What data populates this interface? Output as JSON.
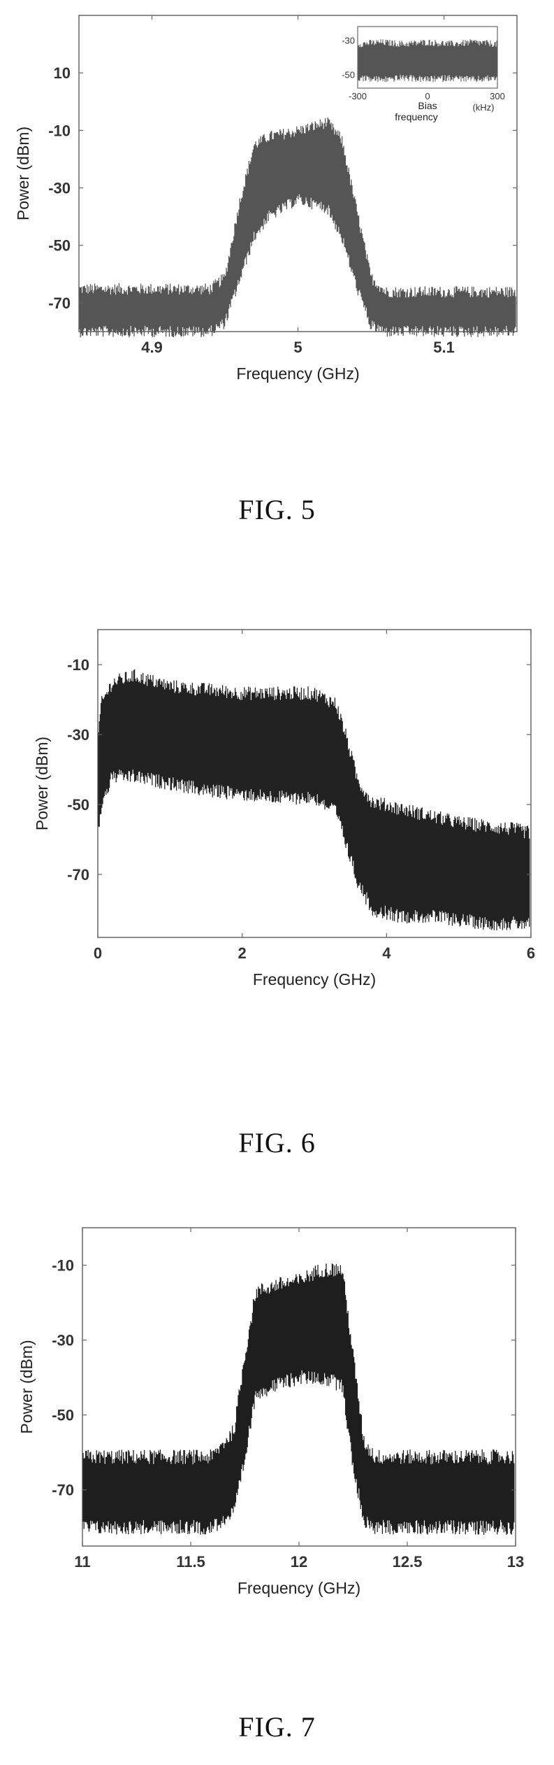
{
  "chart_data": [
    {
      "type": "line",
      "title": "",
      "xlabel": "Frequency (GHz)",
      "ylabel": "Power (dBm)",
      "xlim": [
        4.85,
        5.15
      ],
      "ylim": [
        -80,
        30
      ],
      "xticks": [
        4.9,
        5,
        5.1
      ],
      "xtick_labels": [
        "4.9",
        "5",
        "5.1"
      ],
      "yticks": [
        10,
        -10,
        -30,
        -50,
        -70
      ],
      "ytick_labels": [
        "10",
        "-10",
        "-30",
        "-50",
        "-70"
      ],
      "grid": false,
      "color": "#555555",
      "series": [
        {
          "x": [
            4.85,
            4.9,
            4.94,
            4.95,
            4.96,
            4.97,
            4.98,
            5.0,
            5.02,
            5.03,
            5.04,
            5.05,
            5.06,
            5.1,
            5.15
          ],
          "upper": [
            -66,
            -66,
            -66,
            -62,
            -36,
            -16,
            -13,
            -11,
            -8,
            -14,
            -38,
            -62,
            -67,
            -67,
            -67
          ],
          "lower": [
            -78,
            -78,
            -78,
            -75,
            -60,
            -45,
            -38,
            -32,
            -35,
            -45,
            -62,
            -76,
            -78,
            -78,
            -78
          ]
        }
      ],
      "inset": {
        "xlabel_line1": "Bias",
        "xlabel_line2": "frequency",
        "xunit": "(kHz)",
        "xlim": [
          -300,
          300
        ],
        "ylim": [
          -58,
          -22
        ],
        "xtick_labels": [
          "-300",
          "0",
          "300"
        ],
        "xticks": [
          -300,
          0,
          300
        ],
        "ytick_labels": [
          "-30",
          "-50"
        ],
        "yticks": [
          -30,
          -50
        ],
        "series": [
          {
            "x": [
              -300,
              -200,
              -100,
              0,
              100,
              200,
              300
            ],
            "upper": [
              -33,
              -32,
              -33,
              -32,
              -33,
              -32,
              -33
            ],
            "lower": [
              -50,
              -51,
              -50,
              -51,
              -50,
              -51,
              -50
            ]
          }
        ]
      },
      "caption": "FIG. 5"
    },
    {
      "type": "line",
      "title": "",
      "xlabel": "Frequency (GHz)",
      "ylabel": "Power (dBm)",
      "xlim": [
        0,
        6
      ],
      "ylim": [
        -88,
        0
      ],
      "xticks": [
        0,
        2,
        4,
        6
      ],
      "xtick_labels": [
        "0",
        "2",
        "4",
        "6"
      ],
      "yticks": [
        -10,
        -30,
        -50,
        -70
      ],
      "ytick_labels": [
        "-10",
        "-30",
        "-50",
        "-70"
      ],
      "grid": false,
      "color": "#222222",
      "series": [
        {
          "x": [
            0,
            0.05,
            0.2,
            0.5,
            1.0,
            1.5,
            2.0,
            2.5,
            3.0,
            3.3,
            3.45,
            3.6,
            3.8,
            4.2,
            4.6,
            5.0,
            5.4,
            5.8,
            6.0
          ],
          "upper": [
            -32,
            -22,
            -16,
            -14,
            -17,
            -18,
            -19,
            -19,
            -19,
            -22,
            -32,
            -44,
            -50,
            -52,
            -54,
            -56,
            -57,
            -58,
            -59
          ],
          "lower": [
            -58,
            -48,
            -40,
            -40,
            -42,
            -44,
            -45,
            -46,
            -46,
            -50,
            -60,
            -70,
            -78,
            -80,
            -80,
            -81,
            -82,
            -82,
            -82
          ]
        }
      ],
      "caption": "FIG. 6"
    },
    {
      "type": "line",
      "title": "",
      "xlabel": "Frequency (GHz)",
      "ylabel": "Power (dBm)",
      "xlim": [
        11,
        13
      ],
      "ylim": [
        -85,
        0
      ],
      "xticks": [
        11,
        11.5,
        12,
        12.5,
        13
      ],
      "xtick_labels": [
        "11",
        "11.5",
        "12",
        "12.5",
        "13"
      ],
      "yticks": [
        -10,
        -30,
        -50,
        -70
      ],
      "ytick_labels": [
        "-10",
        "-30",
        "-50",
        "-70"
      ],
      "grid": false,
      "color": "#1e1e1e",
      "series": [
        {
          "x": [
            11,
            11.3,
            11.6,
            11.7,
            11.75,
            11.8,
            11.9,
            12.0,
            12.1,
            12.2,
            12.25,
            12.3,
            12.35,
            12.6,
            13
          ],
          "upper": [
            -62,
            -62,
            -62,
            -55,
            -35,
            -18,
            -16,
            -15,
            -12,
            -12,
            -35,
            -58,
            -62,
            -62,
            -62
          ],
          "lower": [
            -78,
            -78,
            -78,
            -74,
            -60,
            -42,
            -40,
            -38,
            -38,
            -40,
            -62,
            -76,
            -78,
            -78,
            -78
          ]
        }
      ],
      "caption": "FIG. 7"
    }
  ]
}
